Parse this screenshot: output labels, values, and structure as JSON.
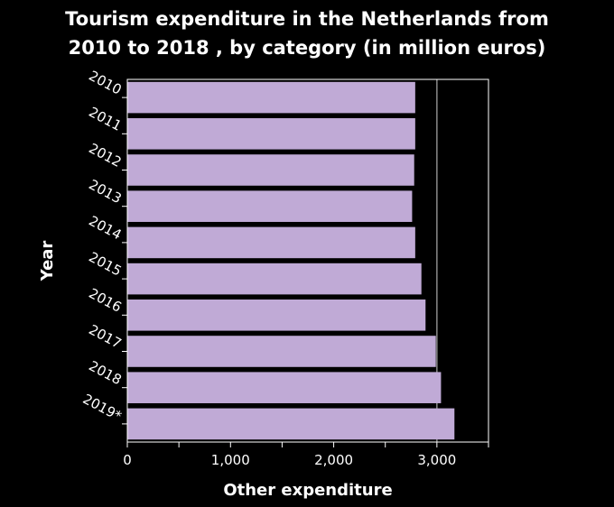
{
  "chart_data": {
    "type": "bar",
    "orientation": "horizontal",
    "title_lines": [
      "Tourism expenditure in the Netherlands from",
      "2010 to 2018 , by category (in million euros)"
    ],
    "xlabel": "Other expenditure",
    "ylabel": "Year",
    "categories": [
      "2010",
      "2011",
      "2012",
      "2013",
      "2014",
      "2015",
      "2016",
      "2017",
      "2018",
      "2019*"
    ],
    "values": [
      2790,
      2790,
      2780,
      2760,
      2790,
      2850,
      2890,
      2990,
      3040,
      3170
    ],
    "xlim": [
      0,
      3500
    ],
    "xticks": [
      0,
      1000,
      2000,
      3000
    ],
    "xtick_labels": [
      "0",
      "1,000",
      "2,000",
      "3,000"
    ],
    "gridlines": [
      3000
    ],
    "bar_color": "#c0aad6",
    "background_color": "#000000",
    "grid_color": "#8a8a8a"
  }
}
